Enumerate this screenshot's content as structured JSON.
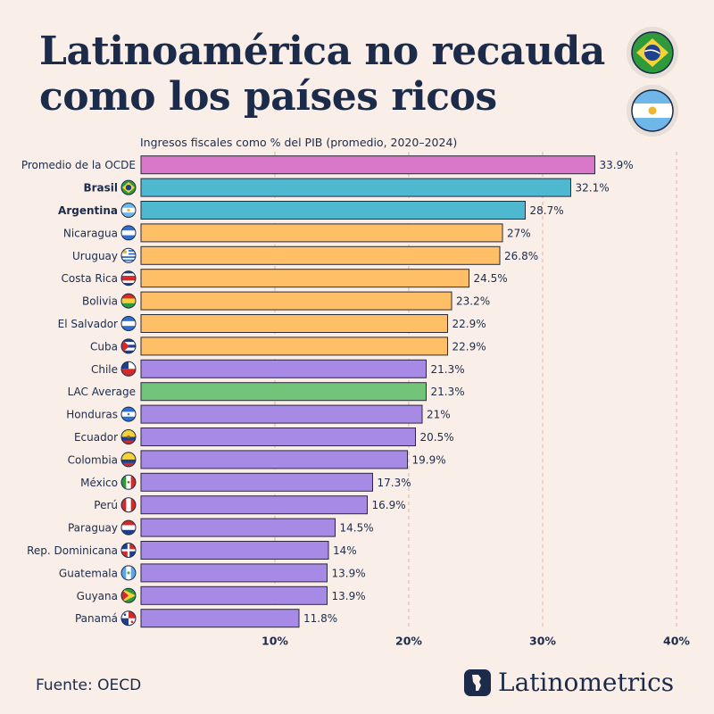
{
  "header": {
    "title_line1": "Latinoamérica no recauda",
    "title_line2": "como los países ricos",
    "icons": [
      "brazil-flag-icon",
      "argentina-flag-icon"
    ]
  },
  "chart_data": {
    "type": "bar",
    "orientation": "horizontal",
    "subtitle": "Ingresos fiscales como % del PIB (promedio, 2020–2024)",
    "categories": [
      "Promedio de la OCDE",
      "Brasil",
      "Argentina",
      "Nicaragua",
      "Uruguay",
      "Costa Rica",
      "Bolivia",
      "El Salvador",
      "Cuba",
      "Chile",
      "LAC Average",
      "Honduras",
      "Ecuador",
      "Colombia",
      "México",
      "Perú",
      "Paraguay",
      "Rep. Dominicana",
      "Guatemala",
      "Guyana",
      "Panamá"
    ],
    "values": [
      33.9,
      32.1,
      28.7,
      27,
      26.8,
      24.5,
      23.2,
      22.9,
      22.9,
      21.3,
      21.3,
      21,
      20.5,
      19.9,
      17.3,
      16.9,
      14.5,
      14,
      13.9,
      13.9,
      11.8
    ],
    "value_labels": [
      "33.9%",
      "32.1%",
      "28.7%",
      "27%",
      "26.8%",
      "24.5%",
      "23.2%",
      "22.9%",
      "22.9%",
      "21.3%",
      "21.3%",
      "21%",
      "20.5%",
      "19.9%",
      "17.3%",
      "16.9%",
      "14.5%",
      "14%",
      "13.9%",
      "13.9%",
      "11.8%"
    ],
    "bar_groups": [
      "ocde",
      "highlight",
      "highlight",
      "above",
      "above",
      "above",
      "above",
      "above",
      "above",
      "below",
      "average",
      "below",
      "below",
      "below",
      "below",
      "below",
      "below",
      "below",
      "below",
      "below",
      "below"
    ],
    "bold_labels": [
      "Brasil",
      "Argentina"
    ],
    "colors": {
      "ocde": "#d977c8",
      "highlight": "#4db8cf",
      "above": "#ffbf66",
      "average": "#72c47a",
      "below": "#a68ae6",
      "grid": "#e0b0a0",
      "bar_stroke": "#2a2a3a"
    },
    "flags": [
      "",
      "brazil",
      "argentina",
      "nicaragua",
      "uruguay",
      "costa-rica",
      "bolivia",
      "el-salvador",
      "cuba",
      "chile",
      "",
      "honduras",
      "ecuador",
      "colombia",
      "mexico",
      "peru",
      "paraguay",
      "dominican-republic",
      "guatemala",
      "guyana",
      "panama"
    ],
    "xlim": [
      0,
      40
    ],
    "xticks": [
      10,
      20,
      30,
      40
    ],
    "xtick_labels": [
      "10%",
      "20%",
      "30%",
      "40%"
    ],
    "grid": true
  },
  "footer": {
    "source": "Fuente: OECD",
    "brand": "Latinometrics"
  }
}
